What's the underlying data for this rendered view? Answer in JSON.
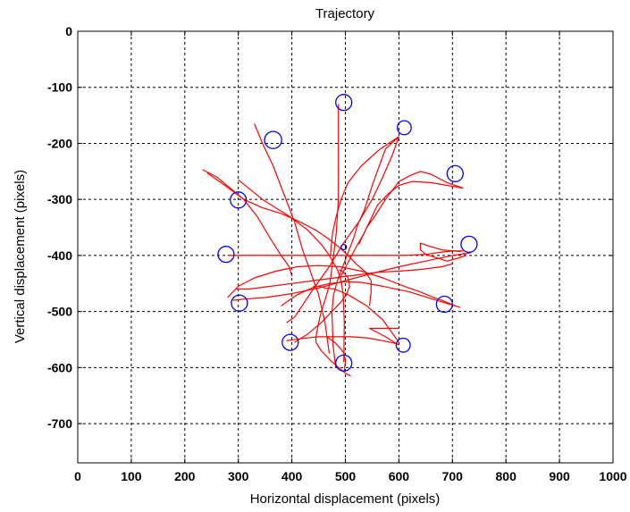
{
  "chart_data": {
    "type": "line",
    "title": "Trajectory",
    "xlabel": "Horizontal displacement (pixels)",
    "ylabel": "Vertical displacement (pixels)",
    "xlim": [
      0,
      1000
    ],
    "ylim": [
      -770,
      0
    ],
    "xticks": [
      0,
      100,
      200,
      300,
      400,
      500,
      600,
      700,
      800,
      900,
      1000
    ],
    "yticks": [
      0,
      -100,
      -200,
      -300,
      -400,
      -500,
      -600,
      -700
    ],
    "grid": true,
    "colors": {
      "trajectory": "#ff0000",
      "targets": "#0000ff",
      "grid": "#000000",
      "axes": "#000000"
    },
    "targets": [
      {
        "x": 497,
        "y": -127,
        "r": 15
      },
      {
        "x": 610,
        "y": -172,
        "r": 13
      },
      {
        "x": 365,
        "y": -194,
        "r": 16
      },
      {
        "x": 705,
        "y": -254,
        "r": 15
      },
      {
        "x": 300,
        "y": -301,
        "r": 15
      },
      {
        "x": 731,
        "y": -380,
        "r": 15
      },
      {
        "x": 277,
        "y": -398,
        "r": 15
      },
      {
        "x": 497,
        "y": -385,
        "r": 5
      },
      {
        "x": 685,
        "y": -487,
        "r": 15
      },
      {
        "x": 302,
        "y": -485,
        "r": 15
      },
      {
        "x": 397,
        "y": -555,
        "r": 15
      },
      {
        "x": 608,
        "y": -560,
        "r": 13
      },
      {
        "x": 497,
        "y": -592,
        "r": 15
      }
    ],
    "series": [
      {
        "type": "trajectory",
        "x": [
          487,
          487,
          487,
          483,
          478,
          471,
          462,
          455,
          450,
          445,
          445,
          455,
          475,
          500,
          510
        ],
        "y": [
          -130,
          -240,
          -300,
          -360,
          -400,
          -450,
          -480,
          -500,
          -520,
          -545,
          -555,
          -570,
          -590,
          -610,
          -615
        ]
      },
      {
        "type": "trajectory",
        "x": [
          600,
          575,
          552,
          535,
          523,
          515,
          505,
          495,
          485,
          478,
          475,
          477,
          482
        ],
        "y": [
          -188,
          -210,
          -270,
          -320,
          -345,
          -370,
          -395,
          -420,
          -445,
          -470,
          -500,
          -560,
          -600
        ]
      },
      {
        "type": "trajectory",
        "x": [
          600,
          565,
          530,
          505,
          492,
          483,
          476,
          472
        ],
        "y": [
          -188,
          -210,
          -240,
          -270,
          -300,
          -330,
          -360,
          -400
        ]
      },
      {
        "type": "trajectory",
        "x": [
          600,
          588,
          570,
          550,
          525,
          495,
          470,
          440,
          405,
          390
        ],
        "y": [
          -188,
          -220,
          -260,
          -300,
          -340,
          -380,
          -420,
          -460,
          -510,
          -520
        ]
      },
      {
        "type": "trajectory",
        "x": [
          330,
          345,
          365,
          385,
          405,
          420,
          435,
          450,
          462,
          470
        ],
        "y": [
          -165,
          -200,
          -240,
          -290,
          -340,
          -390,
          -430,
          -470,
          -520,
          -575
        ]
      },
      {
        "type": "trajectory",
        "x": [
          300,
          345,
          395,
          430,
          455,
          470,
          485,
          492,
          496,
          498,
          497
        ],
        "y": [
          -265,
          -300,
          -330,
          -355,
          -380,
          -400,
          -425,
          -445,
          -470,
          -520,
          -590
        ]
      },
      {
        "type": "trajectory",
        "x": [
          233,
          260,
          285,
          310,
          335,
          360,
          380,
          395,
          400
        ],
        "y": [
          -247,
          -260,
          -280,
          -300,
          -330,
          -370,
          -400,
          -420,
          -437
        ]
      },
      {
        "type": "trajectory",
        "x": [
          242,
          275,
          310,
          345,
          380,
          415,
          445,
          468,
          488,
          505,
          520,
          538,
          548,
          548,
          545
        ],
        "y": [
          -253,
          -275,
          -300,
          -315,
          -325,
          -340,
          -355,
          -370,
          -385,
          -400,
          -415,
          -430,
          -445,
          -465,
          -490
        ]
      },
      {
        "type": "trajectory",
        "x": [
          720,
          690,
          660,
          640,
          620,
          600,
          575,
          555,
          540,
          525
        ],
        "y": [
          -280,
          -270,
          -255,
          -250,
          -258,
          -268,
          -300,
          -330,
          -350,
          -380
        ]
      },
      {
        "type": "trajectory",
        "x": [
          720,
          690,
          660,
          625,
          600,
          580,
          560,
          545,
          535,
          520,
          490
        ],
        "y": [
          -280,
          -275,
          -270,
          -268,
          -275,
          -290,
          -310,
          -340,
          -360,
          -385,
          -440
        ]
      },
      {
        "type": "trajectory",
        "x": [
          280,
          320,
          360,
          400,
          440,
          460,
          490,
          530,
          570,
          610,
          650,
          680,
          700,
          720
        ],
        "y": [
          -400,
          -400,
          -400,
          -400,
          -400,
          -400,
          -400,
          -400,
          -400,
          -400,
          -398,
          -394,
          -392,
          -392
        ]
      },
      {
        "type": "trajectory",
        "x": [
          715,
          680,
          655,
          640,
          640,
          650,
          670,
          690,
          710,
          725,
          720
        ],
        "y": [
          -393,
          -390,
          -383,
          -378,
          -390,
          -398,
          -404,
          -410,
          -405,
          -400,
          -395
        ]
      },
      {
        "type": "trajectory",
        "x": [
          735,
          700,
          650,
          600,
          550,
          500,
          450,
          400,
          350,
          310,
          290
        ],
        "y": [
          -395,
          -400,
          -410,
          -420,
          -432,
          -445,
          -458,
          -468,
          -475,
          -478,
          -480
        ]
      },
      {
        "type": "trajectory",
        "x": [
          280,
          300,
          330,
          370,
          410,
          450,
          490,
          530,
          570,
          610,
          640,
          665,
          680,
          700,
          705
        ],
        "y": [
          -475,
          -455,
          -440,
          -428,
          -420,
          -418,
          -420,
          -428,
          -440,
          -455,
          -465,
          -475,
          -480,
          -488,
          -490
        ]
      },
      {
        "type": "trajectory",
        "x": [
          715,
          670,
          620,
          570,
          530,
          500,
          470,
          440,
          410,
          380
        ],
        "y": [
          -493,
          -480,
          -465,
          -455,
          -448,
          -447,
          -450,
          -457,
          -470,
          -490
        ]
      },
      {
        "type": "trajectory",
        "x": [
          295,
          320,
          360,
          400,
          440,
          480,
          520,
          560,
          600,
          640,
          680,
          700
        ],
        "y": [
          -460,
          -460,
          -455,
          -450,
          -445,
          -440,
          -435,
          -430,
          -428,
          -425,
          -420,
          -415
        ]
      },
      {
        "type": "trajectory",
        "x": [
          405,
          430,
          455,
          475,
          490,
          502,
          508,
          505,
          496,
          488
        ],
        "y": [
          -555,
          -540,
          -520,
          -500,
          -485,
          -470,
          -455,
          -440,
          -430,
          -425
        ]
      },
      {
        "type": "trajectory",
        "x": [
          390,
          420,
          450,
          480,
          510,
          540,
          570,
          590,
          600
        ],
        "y": [
          -552,
          -548,
          -545,
          -545,
          -545,
          -547,
          -552,
          -556,
          -559
        ]
      },
      {
        "type": "trajectory",
        "x": [
          600,
          575,
          545,
          545,
          575,
          600
        ],
        "y": [
          -560,
          -545,
          -530,
          -530,
          -530,
          -530
        ]
      },
      {
        "type": "trajectory",
        "x": [
          600,
          570,
          540,
          505,
          480,
          462,
          450,
          440
        ],
        "y": [
          -555,
          -515,
          -490,
          -470,
          -460,
          -458,
          -455,
          -455
        ]
      },
      {
        "type": "trajectory",
        "x": [
          465,
          480,
          490,
          498,
          500,
          498
        ],
        "y": [
          -545,
          -555,
          -565,
          -575,
          -590,
          -605
        ]
      }
    ]
  }
}
